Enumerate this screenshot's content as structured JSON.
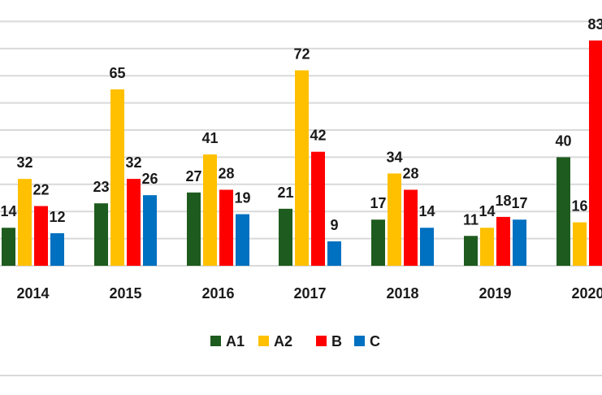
{
  "chart_data": {
    "type": "bar",
    "categories": [
      "2014",
      "2015",
      "2016",
      "2017",
      "2018",
      "2019",
      "2020"
    ],
    "series": [
      {
        "name": "A1",
        "color": "#1e5b1e",
        "values": [
          14,
          23,
          27,
          21,
          17,
          11,
          40
        ]
      },
      {
        "name": "A2",
        "color": "#ffc000",
        "values": [
          32,
          65,
          41,
          72,
          34,
          14,
          16
        ]
      },
      {
        "name": "B",
        "color": "#ff0000",
        "values": [
          22,
          32,
          28,
          42,
          28,
          18,
          83
        ]
      },
      {
        "name": "C",
        "color": "#0070c0",
        "values": [
          12,
          26,
          19,
          9,
          14,
          17,
          null
        ]
      }
    ],
    "ylim": [
      0,
      100
    ],
    "grid": true,
    "legend": "bottom"
  }
}
